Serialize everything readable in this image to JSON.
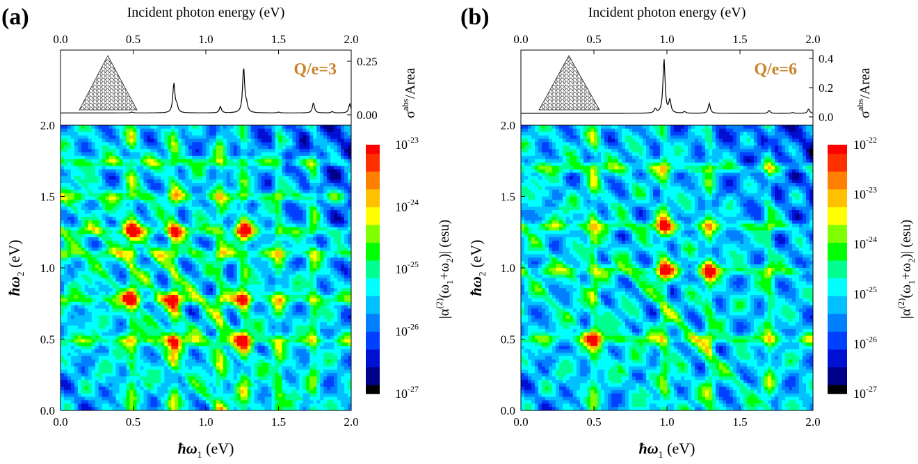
{
  "chart_data": [
    {
      "panel_label": "(a)",
      "type": "heatmap",
      "annotation": "Q/e=3",
      "top_xlabel": "Incident photon energy (eV)",
      "top_xticks": [
        "0.0",
        "0.5",
        "1.0",
        "1.5",
        "2.0"
      ],
      "top_ylabel": "σ",
      "top_ylabel_sup": "abs",
      "top_ylabel_tail": "/Area",
      "top_yticks": [
        "0.00",
        "0.25"
      ],
      "top_ylim": [
        0,
        0.27
      ],
      "spectrum": {
        "baseline": 0.008,
        "peaks": [
          {
            "x": 0.49,
            "h": 0.004
          },
          {
            "x": 0.78,
            "h": 0.13
          },
          {
            "x": 0.8,
            "h": 0.03
          },
          {
            "x": 1.1,
            "h": 0.028
          },
          {
            "x": 1.26,
            "h": 0.2
          },
          {
            "x": 1.28,
            "h": 0.03
          },
          {
            "x": 1.5,
            "h": 0.004
          },
          {
            "x": 1.74,
            "h": 0.045
          },
          {
            "x": 1.87,
            "h": 0.006
          },
          {
            "x": 1.99,
            "h": 0.04
          }
        ]
      },
      "xlabel": "ħω",
      "xlabel_sub": "1",
      "xlabel_tail": " (eV)",
      "ylabel": "ħω",
      "ylabel_sub": "2",
      "ylabel_tail": " (eV)",
      "xticks": [
        "0.0",
        "0.5",
        "1.0",
        "1.5",
        "2.0"
      ],
      "yticks": [
        "0.0",
        "0.5",
        "1.0",
        "1.5",
        "2.0"
      ],
      "xlim": [
        0,
        2.0
      ],
      "ylim": [
        0,
        2.0
      ],
      "resonances": [
        0.49,
        0.78,
        1.1,
        1.26,
        1.5,
        1.74
      ],
      "hotspots": [
        [
          0.49,
          1.26
        ],
        [
          1.26,
          0.49
        ],
        [
          0.78,
          0.78
        ],
        [
          1.26,
          0.78
        ],
        [
          0.78,
          1.26
        ],
        [
          0.49,
          0.78
        ],
        [
          0.78,
          0.49
        ],
        [
          1.26,
          1.26
        ]
      ],
      "colorbar_label": "|α",
      "colorbar_label_sup": "(2)",
      "colorbar_label_mid": "(ω",
      "colorbar_label_sub1": "1",
      "colorbar_label_plus": "+ω",
      "colorbar_label_sub2": "2",
      "colorbar_label_tail": ")| (esu)",
      "colorbar_ticks": [
        {
          "mantissa": "10",
          "exponent": "-23"
        },
        {
          "mantissa": "10",
          "exponent": "-24"
        },
        {
          "mantissa": "10",
          "exponent": "-25"
        },
        {
          "mantissa": "10",
          "exponent": "-26"
        },
        {
          "mantissa": "10",
          "exponent": "-27"
        }
      ],
      "colorbar_log_range": [
        -27,
        -23
      ],
      "field_level_bias": 0.0
    },
    {
      "panel_label": "(b)",
      "type": "heatmap",
      "annotation": "Q/e=6",
      "top_xlabel": "Incident photon energy (eV)",
      "top_xticks": [
        "0.0",
        "0.5",
        "1.0",
        "1.5",
        "2.0"
      ],
      "top_ylabel": "σ",
      "top_ylabel_sup": "abs",
      "top_ylabel_tail": "/Area",
      "top_yticks": [
        "0.0",
        "0.2",
        "0.4"
      ],
      "top_ylim": [
        0,
        0.43
      ],
      "spectrum": {
        "baseline": 0.01,
        "peaks": [
          {
            "x": 0.92,
            "h": 0.03
          },
          {
            "x": 0.98,
            "h": 0.38
          },
          {
            "x": 1.02,
            "h": 0.09
          },
          {
            "x": 1.12,
            "h": 0.012
          },
          {
            "x": 1.29,
            "h": 0.07
          },
          {
            "x": 1.7,
            "h": 0.02
          },
          {
            "x": 1.86,
            "h": 0.006
          },
          {
            "x": 1.97,
            "h": 0.03
          }
        ]
      },
      "xlabel": "ħω",
      "xlabel_sub": "1",
      "xlabel_tail": " (eV)",
      "ylabel": "ħω",
      "ylabel_sub": "2",
      "ylabel_tail": " (eV)",
      "xticks": [
        "0.0",
        "0.5",
        "1.0",
        "1.5",
        "2.0"
      ],
      "yticks": [
        "0.0",
        "0.5",
        "1.0",
        "1.5",
        "2.0"
      ],
      "xlim": [
        0,
        2.0
      ],
      "ylim": [
        0,
        2.0
      ],
      "resonances": [
        0.5,
        0.98,
        1.29,
        1.7
      ],
      "hotspots": [
        [
          0.98,
          0.98
        ],
        [
          0.98,
          1.29
        ],
        [
          1.29,
          0.98
        ],
        [
          0.5,
          0.5
        ]
      ],
      "colorbar_label": "|α",
      "colorbar_label_sup": "(2)",
      "colorbar_label_mid": "(ω",
      "colorbar_label_sub1": "1",
      "colorbar_label_plus": "+ω",
      "colorbar_label_sub2": "2",
      "colorbar_label_tail": ")| (esu)",
      "colorbar_ticks": [
        {
          "mantissa": "10",
          "exponent": "-22"
        },
        {
          "mantissa": "10",
          "exponent": "-23"
        },
        {
          "mantissa": "10",
          "exponent": "-24"
        },
        {
          "mantissa": "10",
          "exponent": "-25"
        },
        {
          "mantissa": "10",
          "exponent": "-26"
        },
        {
          "mantissa": "10",
          "exponent": "-27"
        }
      ],
      "colorbar_log_range": [
        -27,
        -22
      ],
      "field_level_bias": 0.0
    }
  ],
  "colormap": [
    "#000000",
    "#00008b",
    "#0010d0",
    "#0040ff",
    "#0080ff",
    "#00c0ff",
    "#00ffff",
    "#00ff90",
    "#00ff00",
    "#80ff00",
    "#ffff00",
    "#ffc000",
    "#ff8000",
    "#ff3000",
    "#ff0000"
  ]
}
